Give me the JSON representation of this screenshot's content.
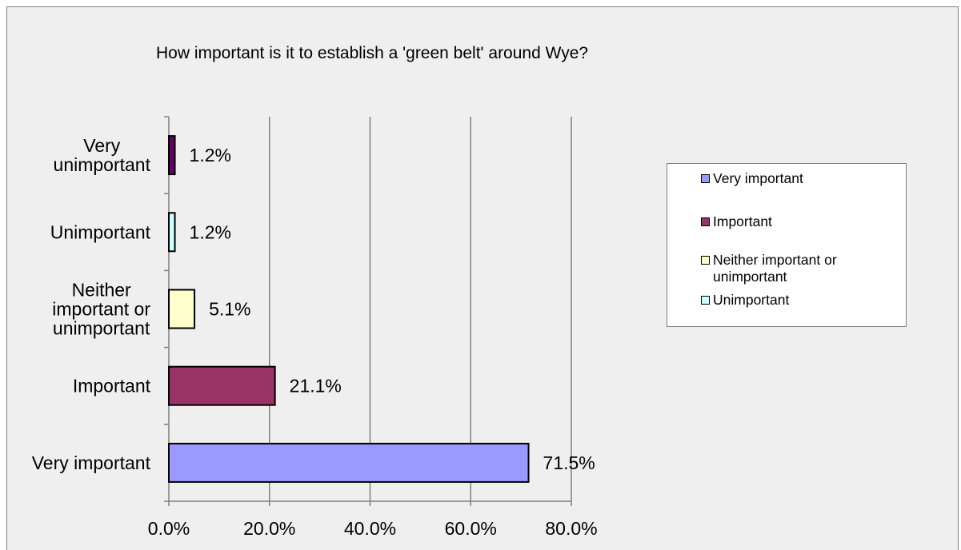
{
  "chart_data": {
    "type": "bar",
    "orientation": "horizontal",
    "title": "How important is it to establish a 'green belt' around Wye?",
    "xlabel": "",
    "ylabel": "",
    "xlim": [
      0,
      80
    ],
    "x_ticks": [
      "0.0%",
      "20.0%",
      "40.0%",
      "60.0%",
      "80.0%"
    ],
    "grid": "vertical",
    "legend_position": "right",
    "categories": [
      {
        "label": [
          "Very important"
        ],
        "value": 71.5,
        "data_label": "71.5%",
        "color": "#9999ff"
      },
      {
        "label": [
          "Important"
        ],
        "value": 21.1,
        "data_label": "21.1%",
        "color": "#993366"
      },
      {
        "label": [
          "Neither",
          "important or",
          "unimportant"
        ],
        "value": 5.1,
        "data_label": "5.1%",
        "color": "#ffffcc"
      },
      {
        "label": [
          "Unimportant"
        ],
        "value": 1.2,
        "data_label": "1.2%",
        "color": "#ccffff"
      },
      {
        "label": [
          "Very",
          "unimportant"
        ],
        "value": 1.2,
        "data_label": "1.2%",
        "color": "#660066"
      }
    ],
    "legend": [
      {
        "label": [
          "Very important"
        ],
        "color": "#9999ff"
      },
      {
        "label": [
          "Important"
        ],
        "color": "#993366"
      },
      {
        "label": [
          "Neither important or",
          "unimportant"
        ],
        "color": "#ffffcc"
      },
      {
        "label": [
          "Unimportant"
        ],
        "color": "#ccffff"
      }
    ]
  }
}
